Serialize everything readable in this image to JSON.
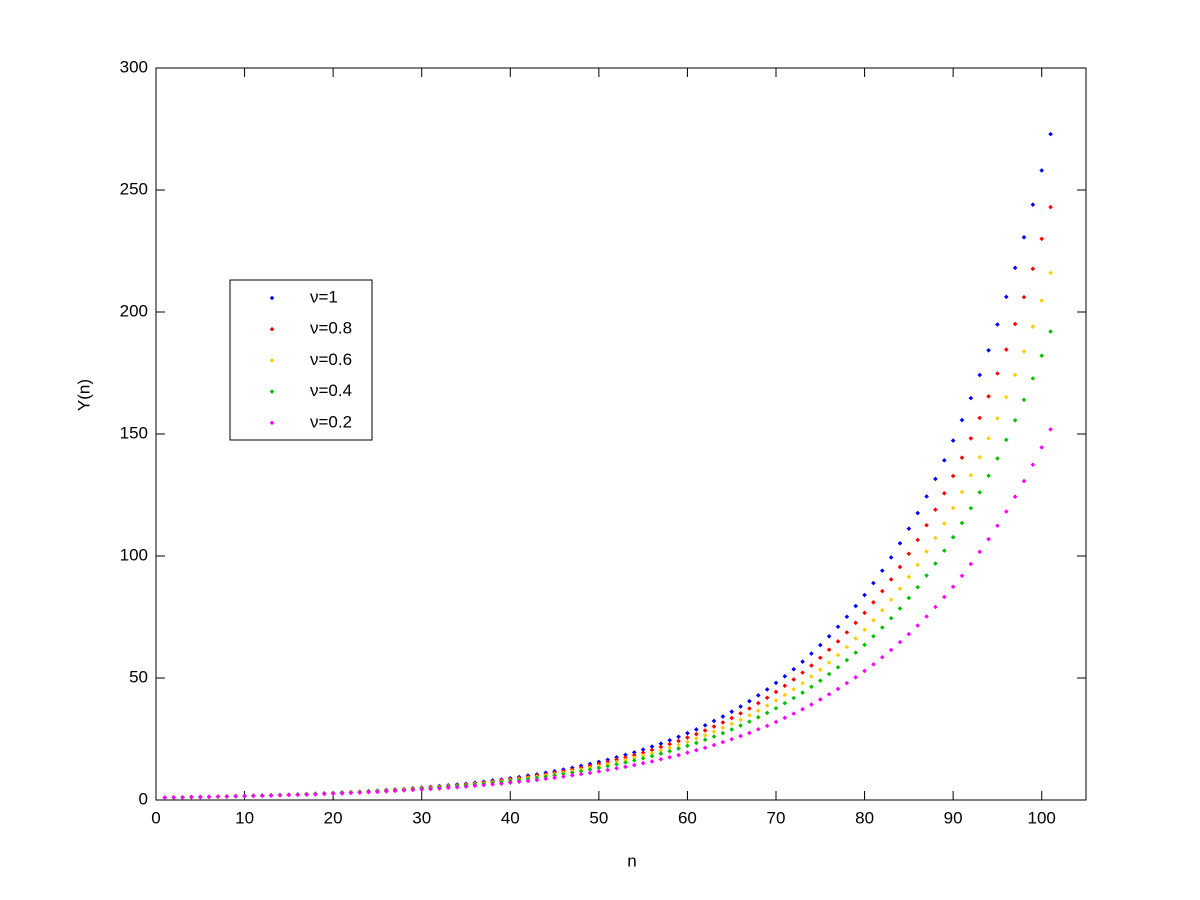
{
  "chart_data": {
    "type": "scatter",
    "xlabel": "n",
    "ylabel": "Y(n)",
    "xlim": [
      0,
      105
    ],
    "ylim": [
      0,
      300
    ],
    "xticks": [
      0,
      10,
      20,
      30,
      40,
      50,
      60,
      70,
      80,
      90,
      100
    ],
    "yticks": [
      0,
      50,
      100,
      150,
      200,
      250,
      300
    ],
    "grid": false,
    "x": [
      1,
      2,
      3,
      4,
      5,
      6,
      7,
      8,
      9,
      10,
      11,
      12,
      13,
      14,
      15,
      16,
      17,
      18,
      19,
      20,
      21,
      22,
      23,
      24,
      25,
      26,
      27,
      28,
      29,
      30,
      31,
      32,
      33,
      34,
      35,
      36,
      37,
      38,
      39,
      40,
      41,
      42,
      43,
      44,
      45,
      46,
      47,
      48,
      49,
      50,
      51,
      52,
      53,
      54,
      55,
      56,
      57,
      58,
      59,
      60,
      61,
      62,
      63,
      64,
      65,
      66,
      67,
      68,
      69,
      70,
      71,
      72,
      73,
      74,
      75,
      76,
      77,
      78,
      79,
      80,
      81,
      82,
      83,
      84,
      85,
      86,
      87,
      88,
      89,
      90,
      91,
      92,
      93,
      94,
      95,
      96,
      97,
      98,
      99,
      100,
      101
    ],
    "series": [
      {
        "name": "ν=1",
        "color": "#0000ff",
        "values": [
          1.0,
          1.1,
          1.1,
          1.2,
          1.3,
          1.3,
          1.4,
          1.5,
          1.6,
          1.7,
          1.8,
          1.9,
          2.0,
          2.1,
          2.2,
          2.3,
          2.5,
          2.6,
          2.7,
          2.9,
          3.1,
          3.2,
          3.4,
          3.6,
          3.8,
          4.1,
          4.3,
          4.5,
          4.8,
          5.1,
          5.4,
          5.7,
          6.0,
          6.4,
          6.7,
          7.1,
          7.5,
          8.0,
          8.4,
          8.9,
          9.4,
          10.0,
          10.5,
          11.2,
          11.8,
          12.5,
          13.2,
          14.0,
          14.8,
          15.6,
          16.5,
          17.5,
          18.5,
          19.5,
          20.7,
          21.9,
          23.1,
          24.5,
          25.9,
          27.4,
          28.9,
          30.6,
          32.4,
          34.2,
          36.2,
          38.3,
          40.5,
          42.9,
          45.3,
          48.0,
          50.7,
          53.6,
          56.7,
          60.0,
          63.5,
          67.1,
          71.0,
          75.1,
          79.5,
          84.0,
          88.9,
          94.0,
          99.4,
          105.2,
          111.2,
          117.6,
          124.4,
          131.6,
          139.2,
          147.3,
          155.7,
          164.7,
          174.2,
          184.3,
          194.9,
          206.2,
          218.1,
          230.6,
          244.0,
          258.0,
          272.9
        ]
      },
      {
        "name": "ν=0.8",
        "color": "#ff0000",
        "values": [
          1.0,
          1.1,
          1.1,
          1.2,
          1.2,
          1.3,
          1.4,
          1.5,
          1.6,
          1.6,
          1.7,
          1.8,
          1.9,
          2.0,
          2.2,
          2.3,
          2.4,
          2.5,
          2.7,
          2.8,
          3.0,
          3.2,
          3.3,
          3.5,
          3.7,
          3.9,
          4.2,
          4.4,
          4.7,
          4.9,
          5.2,
          5.5,
          5.8,
          6.1,
          6.5,
          6.8,
          7.2,
          7.6,
          8.1,
          8.5,
          9.0,
          9.5,
          10.0,
          10.6,
          11.2,
          11.8,
          12.5,
          13.2,
          14.0,
          14.8,
          15.6,
          16.5,
          17.4,
          18.4,
          19.4,
          20.5,
          21.7,
          22.9,
          24.2,
          25.6,
          27.0,
          28.5,
          30.1,
          31.8,
          33.6,
          35.5,
          37.5,
          39.7,
          41.9,
          44.3,
          46.8,
          49.4,
          52.2,
          55.1,
          58.3,
          61.6,
          65.0,
          68.7,
          72.6,
          76.7,
          81.0,
          85.6,
          90.4,
          95.5,
          100.9,
          106.6,
          112.6,
          119.0,
          125.7,
          132.8,
          140.3,
          148.2,
          156.6,
          165.4,
          174.8,
          184.6,
          195.1,
          206.1,
          217.7,
          230.0,
          243.0
        ]
      },
      {
        "name": "ν=0.6",
        "color": "#ffcc00",
        "values": [
          1.0,
          1.1,
          1.1,
          1.2,
          1.2,
          1.3,
          1.4,
          1.5,
          1.5,
          1.6,
          1.7,
          1.8,
          1.9,
          2.0,
          2.1,
          2.2,
          2.4,
          2.5,
          2.6,
          2.8,
          2.9,
          3.1,
          3.3,
          3.4,
          3.6,
          3.8,
          4.0,
          4.3,
          4.5,
          4.8,
          5.0,
          5.3,
          5.6,
          5.9,
          6.2,
          6.6,
          6.9,
          7.3,
          7.7,
          8.1,
          8.6,
          9.1,
          9.6,
          10.1,
          10.6,
          11.2,
          11.9,
          12.5,
          13.2,
          13.9,
          14.7,
          15.5,
          16.4,
          17.3,
          18.2,
          19.2,
          20.3,
          21.4,
          22.6,
          23.8,
          25.2,
          26.5,
          28.0,
          29.6,
          31.2,
          32.9,
          34.7,
          36.6,
          38.7,
          40.8,
          43.1,
          45.4,
          47.9,
          50.6,
          53.4,
          56.3,
          59.4,
          62.7,
          66.2,
          69.8,
          73.7,
          77.8,
          82.1,
          86.6,
          91.4,
          96.4,
          101.8,
          107.4,
          113.3,
          119.6,
          126.2,
          133.1,
          140.5,
          148.2,
          156.4,
          165.1,
          174.2,
          183.8,
          194.0,
          204.7,
          216.0
        ]
      },
      {
        "name": "ν=0.4",
        "color": "#00c000",
        "values": [
          1.0,
          1.1,
          1.1,
          1.2,
          1.2,
          1.3,
          1.4,
          1.4,
          1.5,
          1.6,
          1.7,
          1.8,
          1.9,
          2.0,
          2.1,
          2.2,
          2.3,
          2.4,
          2.6,
          2.7,
          2.9,
          3.0,
          3.2,
          3.4,
          3.5,
          3.7,
          3.9,
          4.1,
          4.4,
          4.6,
          4.8,
          5.1,
          5.4,
          5.7,
          6.0,
          6.3,
          6.6,
          7.0,
          7.4,
          7.8,
          8.2,
          8.6,
          9.1,
          9.6,
          10.1,
          10.7,
          11.2,
          11.8,
          12.5,
          13.1,
          13.9,
          14.6,
          15.4,
          16.2,
          17.1,
          18.0,
          19.0,
          20.0,
          21.1,
          22.2,
          23.4,
          24.7,
          26.0,
          27.4,
          28.9,
          30.5,
          32.1,
          33.9,
          35.7,
          37.6,
          39.7,
          41.8,
          44.0,
          46.4,
          48.9,
          51.6,
          54.4,
          57.3,
          60.4,
          63.6,
          67.1,
          70.7,
          74.5,
          78.5,
          82.8,
          87.2,
          92.0,
          96.9,
          102.2,
          107.7,
          113.5,
          119.6,
          126.1,
          132.9,
          140.0,
          147.6,
          155.6,
          164.0,
          172.8,
          182.1,
          192.0
        ]
      },
      {
        "name": "ν=0.2",
        "color": "#ff00ff",
        "values": [
          1.0,
          1.1,
          1.1,
          1.2,
          1.2,
          1.3,
          1.4,
          1.4,
          1.5,
          1.6,
          1.7,
          1.7,
          1.8,
          1.9,
          2.0,
          2.1,
          2.2,
          2.3,
          2.5,
          2.6,
          2.7,
          2.9,
          3.0,
          3.2,
          3.3,
          3.5,
          3.7,
          3.9,
          4.1,
          4.3,
          4.5,
          4.7,
          5.0,
          5.2,
          5.5,
          5.8,
          6.1,
          6.4,
          6.7,
          7.1,
          7.5,
          7.8,
          8.2,
          8.7,
          9.1,
          9.6,
          10.1,
          10.6,
          11.1,
          11.7,
          12.3,
          13.0,
          13.6,
          14.3,
          15.1,
          15.8,
          16.7,
          17.5,
          18.4,
          19.4,
          20.4,
          21.4,
          22.5,
          23.7,
          24.9,
          26.2,
          27.5,
          29.0,
          30.4,
          32.0,
          33.7,
          35.4,
          37.2,
          39.1,
          41.2,
          43.3,
          45.5,
          47.9,
          50.3,
          52.9,
          55.6,
          58.5,
          61.5,
          64.7,
          68.0,
          71.5,
          75.2,
          79.1,
          83.2,
          87.4,
          91.9,
          96.7,
          101.7,
          106.9,
          112.4,
          118.2,
          124.3,
          130.7,
          137.4,
          144.5,
          151.9
        ]
      }
    ]
  }
}
